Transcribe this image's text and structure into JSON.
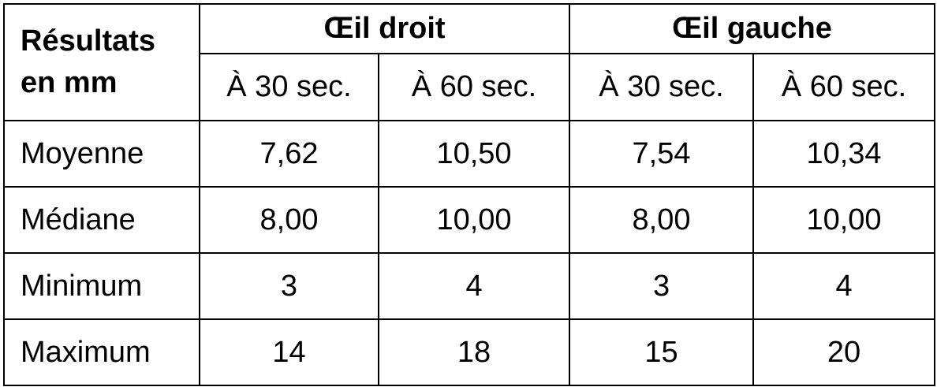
{
  "table": {
    "header": {
      "corner": "Résultats en mm",
      "groups": [
        "Œil droit",
        "Œil gauche"
      ],
      "subheaders": [
        "À 30 sec.",
        "À 60 sec.",
        "À 30 sec.",
        "À 60 sec."
      ]
    },
    "rows": [
      [
        "Moyenne",
        "7,62",
        "10,50",
        "7,54",
        "10,34"
      ],
      [
        "Médiane",
        "8,00",
        "10,00",
        "8,00",
        "10,00"
      ],
      [
        "Minimum",
        "3",
        "4",
        "3",
        "4"
      ],
      [
        "Maximum",
        "14",
        "18",
        "15",
        "20"
      ]
    ]
  }
}
